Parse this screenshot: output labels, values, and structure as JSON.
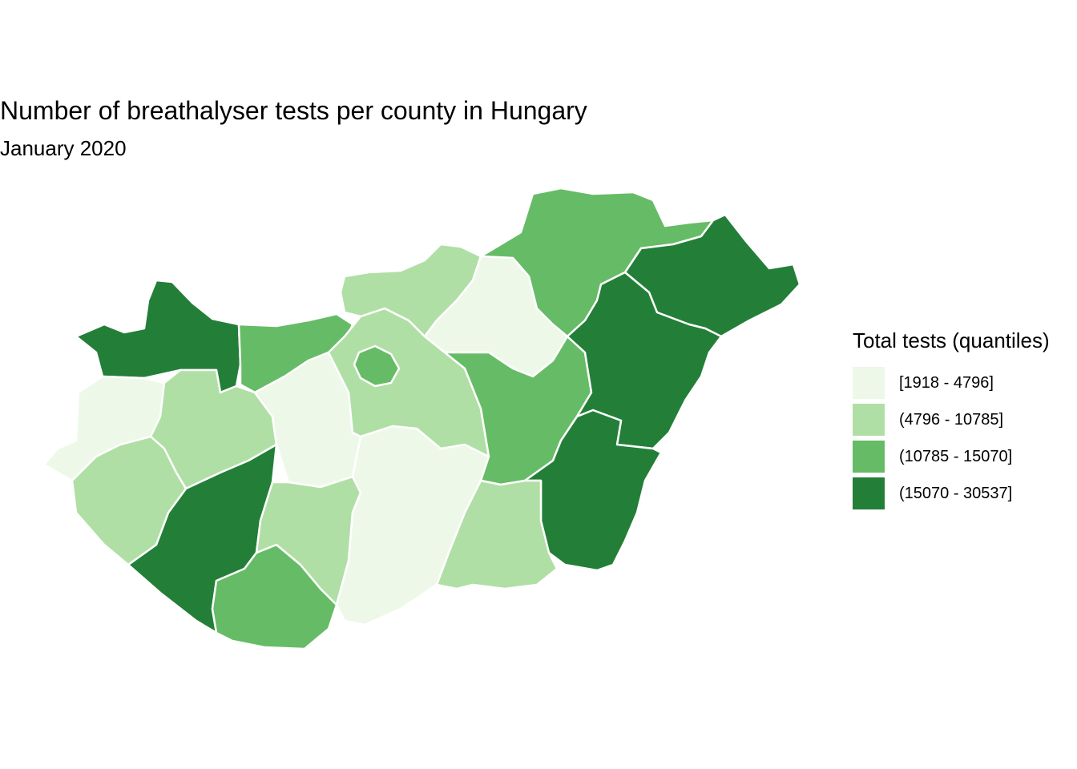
{
  "title": "Number of breathalyser tests per county in Hungary",
  "subtitle": "January 2020",
  "legend": {
    "title": "Total tests (quantiles)",
    "items": [
      {
        "label": "[1918 - 4796]",
        "color": "#edf8e9"
      },
      {
        "label": "(4796 - 10785]",
        "color": "#b0dfa5"
      },
      {
        "label": "(10785 - 15070]",
        "color": "#66bc66"
      },
      {
        "label": "(15070 - 30537]",
        "color": "#237f38"
      }
    ]
  },
  "regions": [
    {
      "class": 3
    },
    {
      "class": 2
    },
    {
      "class": 0
    },
    {
      "class": 1
    },
    {
      "class": 0
    },
    {
      "class": 3
    },
    {
      "class": 1
    },
    {
      "class": 2
    },
    {
      "class": 1
    },
    {
      "class": 0
    },
    {
      "class": 1
    },
    {
      "class": 2
    },
    {
      "class": 1
    },
    {
      "class": 0
    },
    {
      "class": 2
    },
    {
      "class": 2
    },
    {
      "class": 3
    },
    {
      "class": 3
    },
    {
      "class": 3
    },
    {
      "class": 1
    }
  ]
}
